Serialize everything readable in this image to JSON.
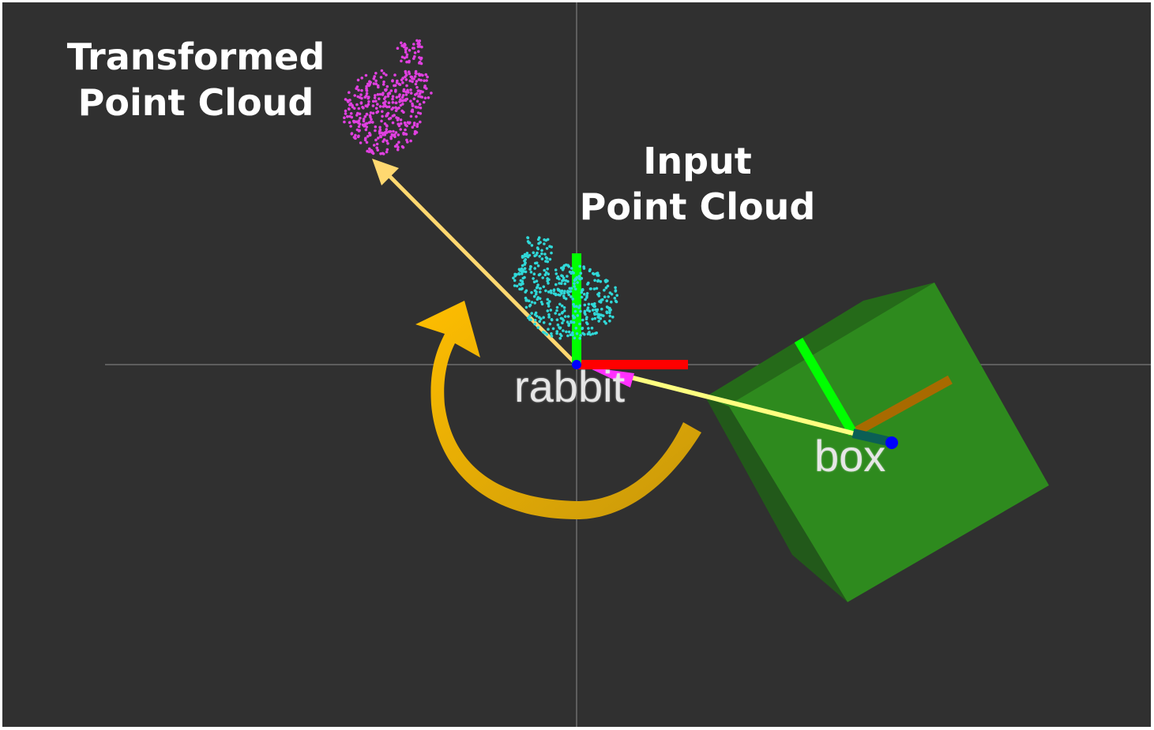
{
  "annotations": {
    "transformed": {
      "line1": "Transformed",
      "line2": "Point Cloud"
    },
    "input": {
      "line1": "Input",
      "line2": "Point Cloud"
    }
  },
  "frames": {
    "rabbit": "rabbit",
    "box": "box"
  },
  "colors": {
    "background": "#303030",
    "grid": "#6e6e6e",
    "transformed_cloud": "#e040e0",
    "input_cloud": "#30d8d8",
    "axis_x": "#ff0000",
    "axis_y": "#00ff00",
    "axis_z": "#0000ff",
    "box": "#2e8a1e",
    "rotation_arrow": "#ffb800",
    "transform_arrow": "#ffd870",
    "tf_link": "#ffff80",
    "tf_marker": "#ff30ff"
  },
  "icons": {
    "rotation": "curved-arrow-icon",
    "translation": "straight-arrow-icon"
  }
}
